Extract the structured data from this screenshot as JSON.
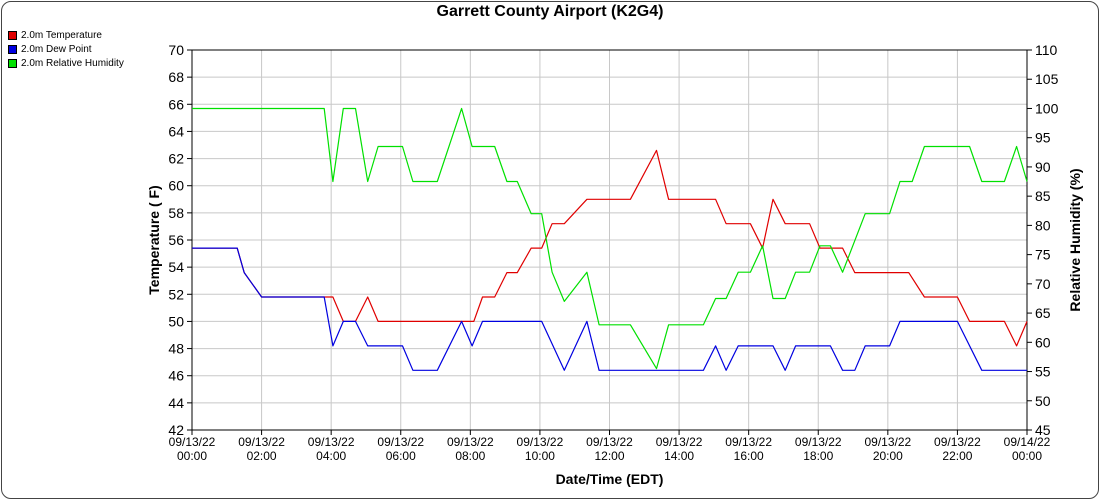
{
  "chart_data": {
    "type": "line",
    "title": "Garrett County Airport (K2G4)",
    "xlabel": "Date/Time (EDT)",
    "ylabel_left": "Temperature ( F)",
    "ylabel_right": "Relative Humidity (%)",
    "ylim_left": [
      42,
      70
    ],
    "yticks_left": [
      42,
      44,
      46,
      48,
      50,
      52,
      54,
      56,
      58,
      60,
      62,
      64,
      66,
      68,
      70
    ],
    "ylim_right": [
      45,
      110
    ],
    "yticks_right": [
      45,
      50,
      55,
      60,
      65,
      70,
      75,
      80,
      85,
      90,
      95,
      100,
      105,
      110
    ],
    "xlim_hours": [
      0,
      24
    ],
    "xticks": [
      {
        "h": 0,
        "date": "09/13/22",
        "time": "00:00"
      },
      {
        "h": 2,
        "date": "09/13/22",
        "time": "02:00"
      },
      {
        "h": 4,
        "date": "09/13/22",
        "time": "04:00"
      },
      {
        "h": 6,
        "date": "09/13/22",
        "time": "06:00"
      },
      {
        "h": 8,
        "date": "09/13/22",
        "time": "08:00"
      },
      {
        "h": 10,
        "date": "09/13/22",
        "time": "10:00"
      },
      {
        "h": 12,
        "date": "09/13/22",
        "time": "12:00"
      },
      {
        "h": 14,
        "date": "09/13/22",
        "time": "14:00"
      },
      {
        "h": 16,
        "date": "09/13/22",
        "time": "16:00"
      },
      {
        "h": 18,
        "date": "09/13/22",
        "time": "18:00"
      },
      {
        "h": 20,
        "date": "09/13/22",
        "time": "20:00"
      },
      {
        "h": 22,
        "date": "09/13/22",
        "time": "22:00"
      },
      {
        "h": 24,
        "date": "09/14/22",
        "time": "00:00"
      }
    ],
    "grid": true,
    "legend_position": "top-left",
    "series": [
      {
        "name": "2.0m Temperature",
        "color": "#e00000",
        "axis": "left",
        "points": [
          [
            0,
            55.4
          ],
          [
            1.3,
            55.4
          ],
          [
            1.5,
            53.6
          ],
          [
            2,
            51.8
          ],
          [
            3.8,
            51.8
          ],
          [
            4.05,
            51.8
          ],
          [
            4.35,
            50
          ],
          [
            4.7,
            50
          ],
          [
            5.05,
            51.8
          ],
          [
            5.35,
            50
          ],
          [
            7.75,
            50
          ],
          [
            8.1,
            50
          ],
          [
            8.35,
            51.8
          ],
          [
            8.7,
            51.8
          ],
          [
            9.05,
            53.6
          ],
          [
            9.35,
            53.6
          ],
          [
            9.75,
            55.4
          ],
          [
            10.05,
            55.4
          ],
          [
            10.35,
            57.2
          ],
          [
            10.7,
            57.2
          ],
          [
            11.35,
            59
          ],
          [
            12.6,
            59
          ],
          [
            13.35,
            62.6
          ],
          [
            13.7,
            59
          ],
          [
            15.05,
            59
          ],
          [
            15.35,
            57.2
          ],
          [
            16.05,
            57.2
          ],
          [
            16.4,
            55.4
          ],
          [
            16.7,
            59
          ],
          [
            17.05,
            57.2
          ],
          [
            17.75,
            57.2
          ],
          [
            18.05,
            55.4
          ],
          [
            18.7,
            55.4
          ],
          [
            19.05,
            53.6
          ],
          [
            20.6,
            53.6
          ],
          [
            21.05,
            51.8
          ],
          [
            22,
            51.8
          ],
          [
            22.35,
            50
          ],
          [
            23.35,
            50
          ],
          [
            23.7,
            48.2
          ],
          [
            24,
            50
          ]
        ]
      },
      {
        "name": "2.0m Dew Point",
        "color": "#0000e0",
        "axis": "left",
        "points": [
          [
            0,
            55.4
          ],
          [
            1.3,
            55.4
          ],
          [
            1.5,
            53.6
          ],
          [
            2,
            51.8
          ],
          [
            3.8,
            51.8
          ],
          [
            4.05,
            48.2
          ],
          [
            4.35,
            50
          ],
          [
            4.7,
            50
          ],
          [
            5.05,
            48.2
          ],
          [
            6.05,
            48.2
          ],
          [
            6.35,
            46.4
          ],
          [
            7.05,
            46.4
          ],
          [
            7.75,
            50
          ],
          [
            8.05,
            48.2
          ],
          [
            8.35,
            50
          ],
          [
            10.05,
            50
          ],
          [
            10.7,
            46.4
          ],
          [
            11.35,
            50
          ],
          [
            11.7,
            46.4
          ],
          [
            14.7,
            46.4
          ],
          [
            15.05,
            48.2
          ],
          [
            15.35,
            46.4
          ],
          [
            15.7,
            48.2
          ],
          [
            16.7,
            48.2
          ],
          [
            17.05,
            46.4
          ],
          [
            17.35,
            48.2
          ],
          [
            18.35,
            48.2
          ],
          [
            18.7,
            46.4
          ],
          [
            19.05,
            46.4
          ],
          [
            19.35,
            48.2
          ],
          [
            20.05,
            48.2
          ],
          [
            20.35,
            50
          ],
          [
            22,
            50
          ],
          [
            22.7,
            46.4
          ],
          [
            24,
            46.4
          ]
        ]
      },
      {
        "name": "2.0m Relative Humidity",
        "color": "#00e000",
        "axis": "right",
        "points": [
          [
            0,
            100
          ],
          [
            3.8,
            100
          ],
          [
            4.05,
            87.5
          ],
          [
            4.35,
            100
          ],
          [
            4.7,
            100
          ],
          [
            5.05,
            87.5
          ],
          [
            5.35,
            93.5
          ],
          [
            6.05,
            93.5
          ],
          [
            6.35,
            87.5
          ],
          [
            7.05,
            87.5
          ],
          [
            7.75,
            100
          ],
          [
            8.05,
            93.5
          ],
          [
            8.7,
            93.5
          ],
          [
            9.05,
            87.5
          ],
          [
            9.35,
            87.5
          ],
          [
            9.75,
            82
          ],
          [
            10.05,
            82
          ],
          [
            10.35,
            72
          ],
          [
            10.7,
            67
          ],
          [
            11.35,
            72
          ],
          [
            11.7,
            63
          ],
          [
            12.6,
            63
          ],
          [
            13.35,
            55.5
          ],
          [
            13.7,
            63
          ],
          [
            14.7,
            63
          ],
          [
            15.05,
            67.5
          ],
          [
            15.35,
            67.5
          ],
          [
            15.7,
            72
          ],
          [
            16.05,
            72
          ],
          [
            16.4,
            76.5
          ],
          [
            16.7,
            67.5
          ],
          [
            17.05,
            67.5
          ],
          [
            17.35,
            72
          ],
          [
            17.75,
            72
          ],
          [
            18.05,
            76.5
          ],
          [
            18.35,
            76.5
          ],
          [
            18.7,
            72
          ],
          [
            19.35,
            82
          ],
          [
            20.05,
            82
          ],
          [
            20.35,
            87.5
          ],
          [
            20.7,
            87.5
          ],
          [
            21.05,
            93.5
          ],
          [
            22.35,
            93.5
          ],
          [
            22.7,
            87.5
          ],
          [
            23.35,
            87.5
          ],
          [
            23.7,
            93.5
          ],
          [
            24,
            87.5
          ]
        ]
      }
    ]
  }
}
